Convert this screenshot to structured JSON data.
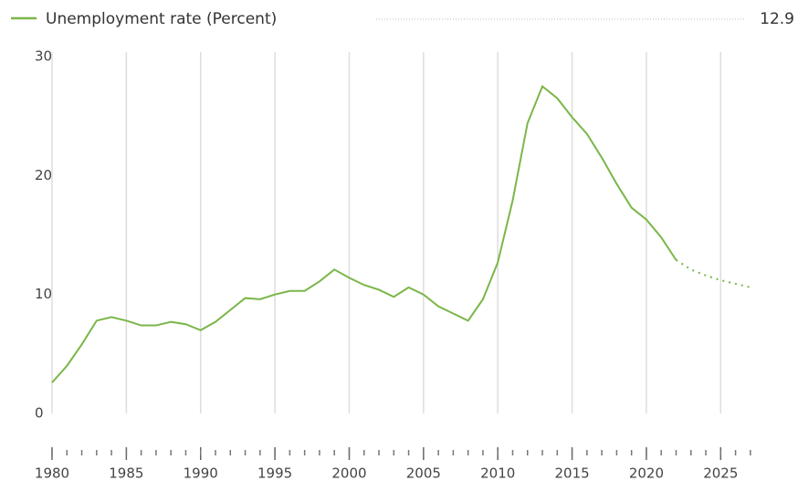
{
  "chart_data": {
    "type": "line",
    "x": [
      1980,
      1981,
      1982,
      1983,
      1984,
      1985,
      1986,
      1987,
      1988,
      1989,
      1990,
      1991,
      1992,
      1993,
      1994,
      1995,
      1996,
      1997,
      1998,
      1999,
      2000,
      2001,
      2002,
      2003,
      2004,
      2005,
      2006,
      2007,
      2008,
      2009,
      2010,
      2011,
      2012,
      2013,
      2014,
      2015,
      2016,
      2017,
      2018,
      2019,
      2020,
      2021,
      2022,
      2023,
      2024,
      2025,
      2026,
      2027
    ],
    "series": [
      {
        "name": "Unemployment rate (Percent)",
        "color": "#7ab648",
        "values": [
          2.6,
          4.0,
          5.8,
          7.8,
          8.1,
          7.8,
          7.4,
          7.4,
          7.7,
          7.5,
          7.0,
          7.7,
          8.7,
          9.7,
          9.6,
          10.0,
          10.3,
          10.3,
          11.1,
          12.1,
          11.4,
          10.8,
          10.4,
          9.8,
          10.6,
          10.0,
          9.0,
          8.4,
          7.8,
          9.6,
          12.7,
          17.9,
          24.4,
          27.5,
          26.5,
          24.9,
          23.5,
          21.5,
          19.3,
          17.3,
          16.3,
          14.8,
          12.9,
          12.1,
          11.6,
          11.2,
          10.9,
          10.6
        ]
      }
    ],
    "dashed_from": 2022,
    "xlim": [
      1980,
      2027.5
    ],
    "xticks": [
      1980,
      1985,
      1990,
      1995,
      2000,
      2005,
      2010,
      2015,
      2020,
      2025
    ],
    "ylim": [
      0,
      30
    ],
    "yticks": [
      0,
      10,
      20,
      30
    ],
    "grid": true
  }
}
